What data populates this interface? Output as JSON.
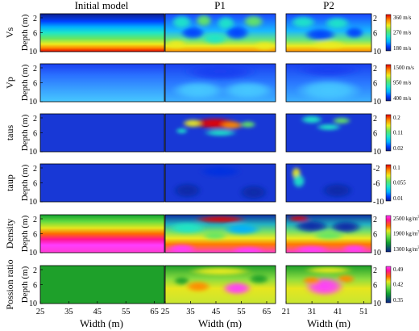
{
  "columns": [
    "Initial model",
    "P1",
    "P2"
  ],
  "depth_label": "Depth (m)",
  "width_label": "Width (m)",
  "x_ticks": {
    "initial": [
      "25",
      "35",
      "45",
      "55",
      "65"
    ],
    "p1": [
      "25",
      "35",
      "45",
      "55",
      "65"
    ],
    "p2": [
      "21",
      "31",
      "41",
      "51"
    ]
  },
  "rows": [
    {
      "id": "vs",
      "label": "Vs",
      "mid": "6",
      "depth_ticks": [
        "2",
        "6",
        "10"
      ],
      "right_ticks": [
        "2",
        "6",
        "10"
      ],
      "colorbar": {
        "type": "rainbow",
        "labels": [
          "360 m/s",
          "270 m/s",
          "180 m/s"
        ]
      }
    },
    {
      "id": "vp",
      "label": "Vp",
      "mid": "6",
      "depth_ticks": [
        "2",
        "6",
        "10"
      ],
      "right_ticks": [
        "2",
        "6",
        "10"
      ],
      "colorbar": {
        "type": "rainbow",
        "labels": [
          "1500 m/s",
          "950 m/s",
          "400 m/s"
        ]
      }
    },
    {
      "id": "taus",
      "label": "taus",
      "mid": "6",
      "depth_ticks": [
        "2",
        "6",
        "10"
      ],
      "right_ticks": [
        "2",
        "6",
        "10"
      ],
      "colorbar": {
        "type": "rainbow",
        "labels": [
          "0.2",
          "0.11",
          "0.02"
        ]
      }
    },
    {
      "id": "taup",
      "label": "taup",
      "mid": "6",
      "depth_ticks": [
        "2",
        "6",
        "10"
      ],
      "right_ticks": [
        "-2",
        "-6",
        "-10"
      ],
      "colorbar": {
        "type": "rainbow",
        "labels": [
          "0.1",
          "0.055",
          "0.01"
        ]
      }
    },
    {
      "id": "density",
      "label": "Density",
      "mid": "6",
      "depth_ticks": [
        "2",
        "6",
        "10"
      ],
      "right_ticks": [
        "2",
        "6",
        "10"
      ],
      "colorbar": {
        "type": "density",
        "labels": [
          "2500 kg/m",
          "1900 kg/m",
          "1300 kg/m"
        ],
        "sup": "3"
      }
    },
    {
      "id": "poisson",
      "label": "Possion ratio",
      "mid": "6",
      "depth_ticks": [
        "2",
        "6",
        "10"
      ],
      "right_ticks": [
        "2",
        "6",
        "10"
      ],
      "colorbar": {
        "type": "density",
        "labels": [
          "0.49",
          "0.42",
          "0.35"
        ]
      }
    }
  ],
  "colors": {
    "background": "#ffffff",
    "rainbow": [
      "#0d1f8c",
      "#0040ff",
      "#00b0ff",
      "#1ee6c8",
      "#64e664",
      "#ecec1e",
      "#ff8a00",
      "#e40000"
    ],
    "density": [
      "#0d1f8c",
      "#10a030",
      "#64dc40",
      "#e6e61e",
      "#ff6a00",
      "#ff1493",
      "#ff3cff"
    ]
  }
}
